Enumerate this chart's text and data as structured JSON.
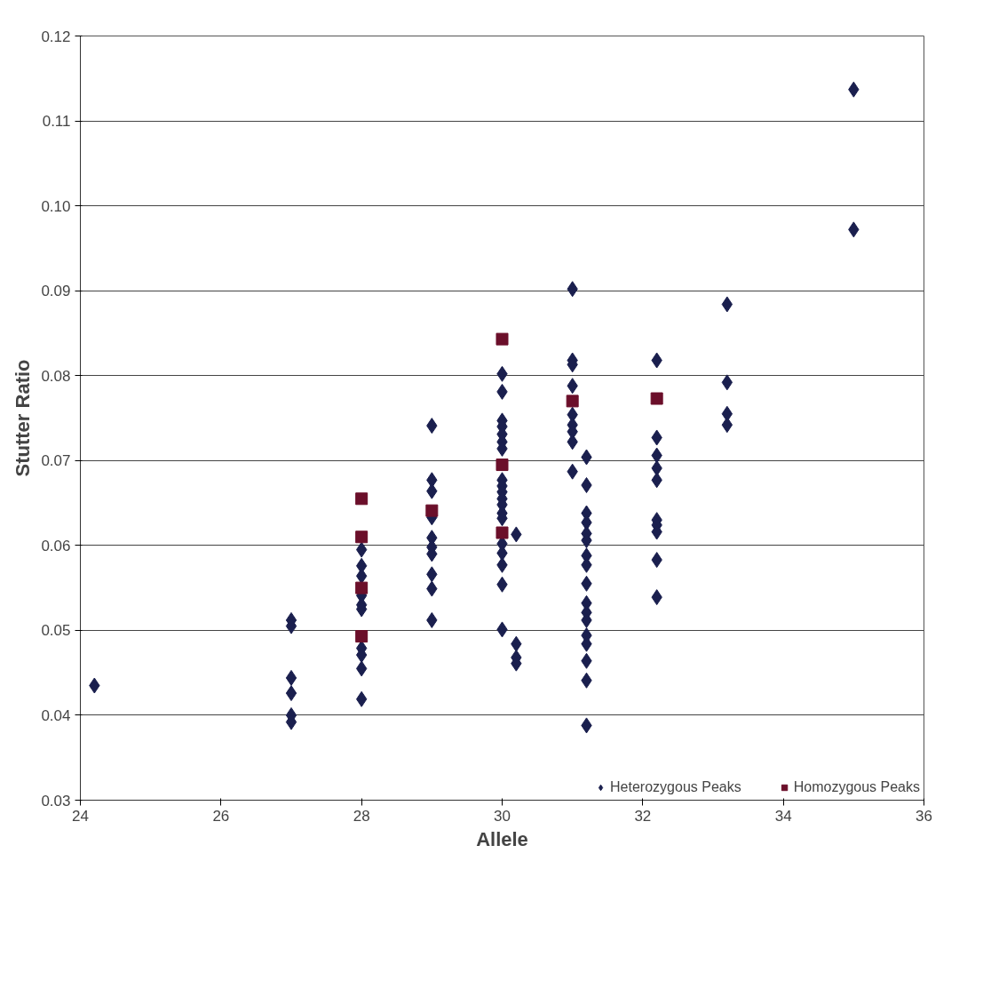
{
  "chart_data": {
    "type": "scatter",
    "xlabel": "Allele",
    "ylabel": "Stutter Ratio",
    "xlim": [
      24,
      36
    ],
    "xticks": [
      24,
      26,
      28,
      30,
      32,
      34,
      36
    ],
    "ylim": [
      0.03,
      0.12
    ],
    "yticks": [
      {
        "value": 0.03,
        "label": "0.03"
      },
      {
        "value": 0.04,
        "label": "0.04"
      },
      {
        "value": 0.05,
        "label": "0.05"
      },
      {
        "value": 0.06,
        "label": "0.06"
      },
      {
        "value": 0.07,
        "label": "0.07"
      },
      {
        "value": 0.08,
        "label": "0.08"
      },
      {
        "value": 0.09,
        "label": "0.09"
      },
      {
        "value": 0.1,
        "label": "0.10"
      },
      {
        "value": 0.11,
        "label": "0.11"
      },
      {
        "value": 0.12,
        "label": "0.12"
      }
    ],
    "grid": "y",
    "legend": "bottom right",
    "series": [
      {
        "name": "Heterozygous Peaks",
        "color": "#1a1f4e",
        "marker": "diamond",
        "x": [
          24.2,
          27,
          27,
          27,
          27,
          27,
          27,
          28,
          28,
          28,
          28,
          28,
          28,
          28,
          28,
          28,
          28,
          29,
          29,
          29,
          29,
          29,
          29,
          29,
          29,
          29,
          29,
          30,
          30,
          30,
          30,
          30,
          30,
          30,
          30,
          30,
          30,
          30,
          30,
          30,
          30,
          30,
          30,
          30,
          30,
          30,
          30.2,
          30.2,
          30.2,
          30.2,
          31,
          31,
          31,
          31,
          31,
          31,
          31,
          31,
          31,
          31.2,
          31.2,
          31.2,
          31.2,
          31.2,
          31.2,
          31.2,
          31.2,
          31.2,
          31.2,
          31.2,
          31.2,
          31.2,
          31.2,
          31.2,
          31.2,
          31.2,
          32.2,
          32.2,
          32.2,
          32.2,
          32.2,
          32.2,
          32.2,
          32.2,
          32.2,
          32.2,
          33.2,
          33.2,
          33.2,
          33.2,
          35,
          35
        ],
        "values": [
          0.0435,
          0.0512,
          0.0505,
          0.0444,
          0.0426,
          0.04,
          0.0392,
          0.0595,
          0.0576,
          0.0564,
          0.0541,
          0.053,
          0.0525,
          0.0479,
          0.0471,
          0.0455,
          0.0419,
          0.0741,
          0.0677,
          0.0664,
          0.0633,
          0.0609,
          0.0598,
          0.059,
          0.0566,
          0.0549,
          0.0512,
          0.0802,
          0.0781,
          0.0747,
          0.074,
          0.0731,
          0.0722,
          0.0714,
          0.0677,
          0.067,
          0.0663,
          0.0655,
          0.0648,
          0.0638,
          0.0632,
          0.0602,
          0.0591,
          0.0577,
          0.0554,
          0.0501,
          0.0613,
          0.0484,
          0.0468,
          0.0461,
          0.0902,
          0.0818,
          0.0813,
          0.0788,
          0.0754,
          0.0742,
          0.0734,
          0.0722,
          0.0687,
          0.0704,
          0.0671,
          0.0638,
          0.0627,
          0.0614,
          0.0606,
          0.0588,
          0.0577,
          0.0555,
          0.0532,
          0.0521,
          0.0512,
          0.0494,
          0.0484,
          0.0464,
          0.0441,
          0.0388,
          0.0818,
          0.0727,
          0.0706,
          0.0691,
          0.0677,
          0.063,
          0.0624,
          0.0616,
          0.0583,
          0.0539,
          0.0884,
          0.0792,
          0.0755,
          0.0742,
          0.1137,
          0.0972
        ]
      },
      {
        "name": "Homozygous Peaks",
        "color": "#6b0f2a",
        "marker": "square",
        "x": [
          28,
          28,
          28,
          28,
          29,
          30,
          30,
          30,
          31,
          32.2
        ],
        "values": [
          0.0655,
          0.061,
          0.055,
          0.0493,
          0.0641,
          0.0843,
          0.0695,
          0.0615,
          0.077,
          0.0773
        ]
      }
    ]
  }
}
